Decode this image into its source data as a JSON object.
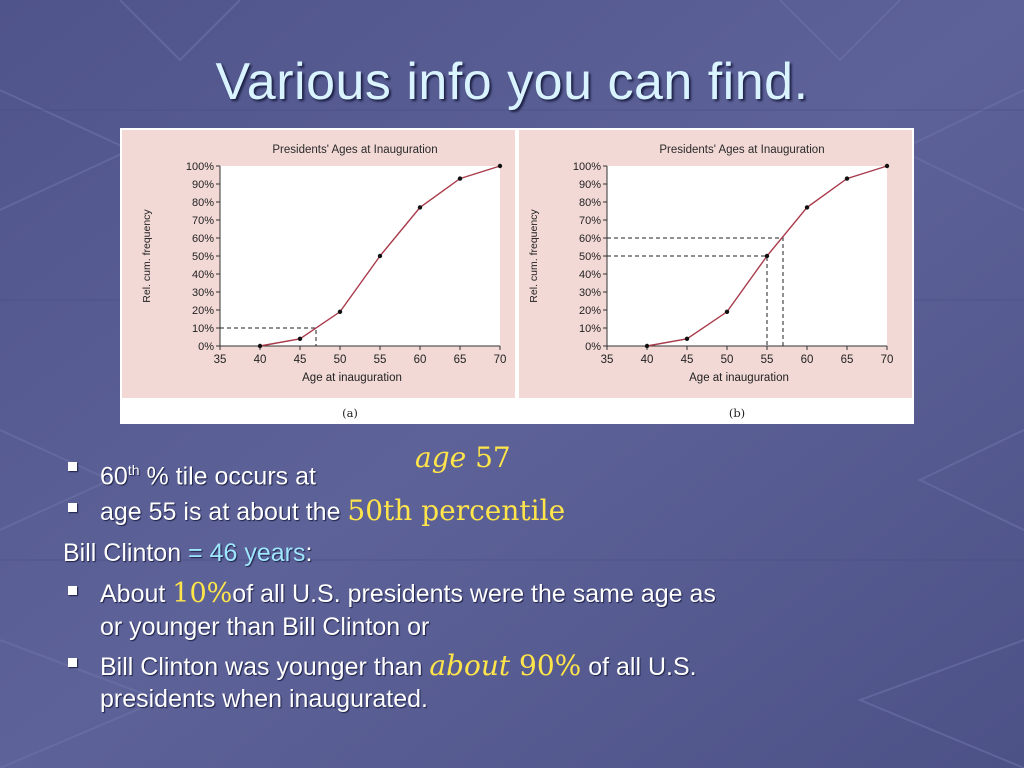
{
  "slide": {
    "title": "Various info you can find.",
    "colors": {
      "background": "#5a5f95",
      "title": "#d9f4ff",
      "annotation": "#ffe54a",
      "highlight": "#9fe6ff",
      "chart_line": "#a83a4a",
      "panel_bg": "#f2d9d6"
    }
  },
  "chart_data": [
    {
      "type": "line",
      "panel_label": "(a)",
      "title": "Presidents' Ages at Inauguration",
      "xlabel": "Age at inauguration",
      "ylabel": "Rel. cum. frequency",
      "x": [
        40,
        45,
        50,
        55,
        60,
        65,
        70
      ],
      "values": [
        0,
        4,
        19,
        50,
        77,
        93,
        100
      ],
      "xticks": [
        35,
        40,
        45,
        50,
        55,
        60,
        65,
        70
      ],
      "yticks": [
        "0%",
        "10%",
        "20%",
        "30%",
        "40%",
        "50%",
        "60%",
        "70%",
        "80%",
        "90%",
        "100%"
      ],
      "xlim": [
        35,
        70
      ],
      "ylim": [
        0,
        100
      ],
      "reference_lines": [
        {
          "x": 47,
          "y": 10
        }
      ],
      "grid": false
    },
    {
      "type": "line",
      "panel_label": "(b)",
      "title": "Presidents' Ages at Inauguration",
      "xlabel": "Age at inauguration",
      "ylabel": "Rel. cum. frequency",
      "x": [
        40,
        45,
        50,
        55,
        60,
        65,
        70
      ],
      "values": [
        0,
        4,
        19,
        50,
        77,
        93,
        100
      ],
      "xticks": [
        35,
        40,
        45,
        50,
        55,
        60,
        65,
        70
      ],
      "yticks": [
        "0%",
        "10%",
        "20%",
        "30%",
        "40%",
        "50%",
        "60%",
        "70%",
        "80%",
        "90%",
        "100%"
      ],
      "xlim": [
        35,
        70
      ],
      "ylim": [
        0,
        100
      ],
      "reference_lines": [
        {
          "x": 55,
          "y": 50
        },
        {
          "x": 57,
          "y": 60
        }
      ],
      "grid": false
    }
  ],
  "bullets": {
    "b1_pre": "60",
    "b1_sup": "th",
    "b1_post": " % tile occurs at",
    "b1_hand_a": "age",
    "b1_hand_b": " 57",
    "b2_pre": "age 55 is at about the ",
    "b2_hand": "50th percentile",
    "p3_pre": "Bill Clinton ",
    "p3_blue": "= 46 years",
    "p3_post": ":",
    "b4_pre": "About ",
    "b4_hand": "10%",
    "b4_post": "of all U.S. presidents were the same age as",
    "b4_line2": "or younger than Bill Clinton or",
    "b5_pre": "Bill Clinton was younger than ",
    "b5_hand_a": "about",
    "b5_hand_b": " 90%",
    "b5_post": " of all U.S.",
    "b5_line2": "presidents when inaugurated."
  }
}
